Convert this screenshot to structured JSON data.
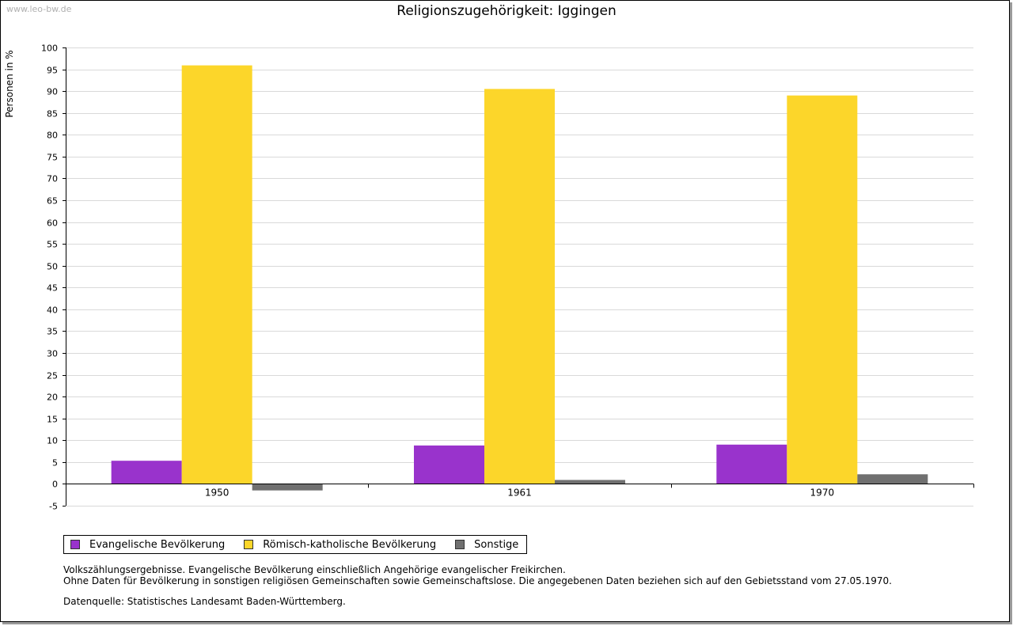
{
  "watermark": "www.leo-bw.de",
  "chart_data": {
    "type": "bar",
    "title": "Religionszugehörigkeit: Iggingen",
    "xlabel": "",
    "ylabel": "Personen in %",
    "ylim": [
      -5,
      100
    ],
    "ytick_step": 5,
    "grid": true,
    "categories": [
      "1950",
      "1961",
      "1970"
    ],
    "series": [
      {
        "name": "Evangelische Bevölkerung",
        "color": "#9933cc",
        "values": [
          5.3,
          8.8,
          9.0
        ]
      },
      {
        "name": "Römisch-katholische Bevölkerung",
        "color": "#fcd62a",
        "values": [
          95.9,
          90.5,
          89.0
        ]
      },
      {
        "name": "Sonstige",
        "color": "#707070",
        "values": [
          -1.5,
          0.9,
          2.2
        ]
      }
    ],
    "legend_position": "bottom-left"
  },
  "notes": {
    "line1": "Volkszählungsergebnisse. Evangelische Bevölkerung einschließlich Angehörige evangelischer Freikirchen.",
    "line2": "Ohne Daten für Bevölkerung in sonstigen religiösen Gemeinschaften sowie Gemeinschaftslose. Die angegebenen Daten beziehen sich auf den Gebietsstand vom 27.05.1970.",
    "source": "Datenquelle: Statistisches Landesamt Baden-Württemberg."
  }
}
